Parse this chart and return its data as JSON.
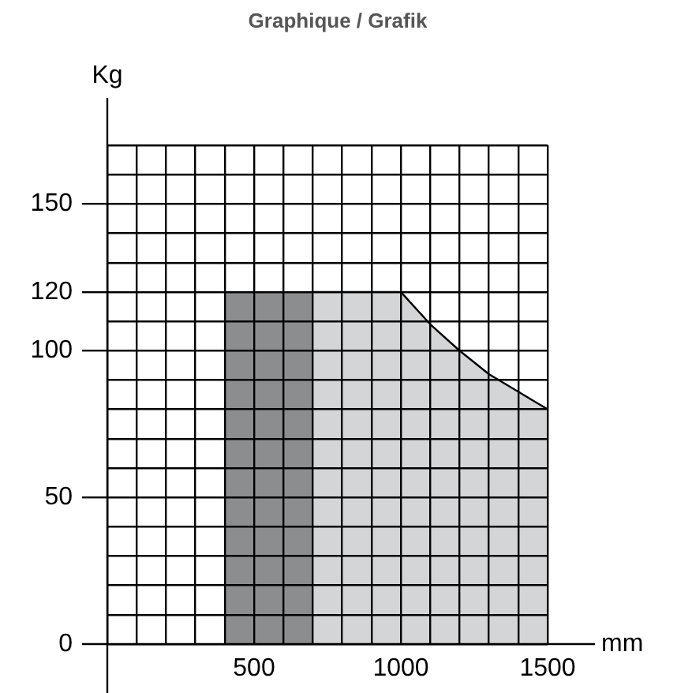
{
  "chart_data": {
    "type": "area",
    "title": "Graphique / Grafik",
    "xlabel": "mm",
    "ylabel": "Kg",
    "series": [
      {
        "color": "#8b8d8f",
        "x": [
          400,
          700
        ],
        "values": [
          120,
          120
        ]
      },
      {
        "color": "#d4d5d6",
        "x": [
          700,
          800,
          900,
          1000,
          1100,
          1200,
          1300,
          1400,
          1500
        ],
        "values": [
          120,
          120,
          120,
          120,
          109,
          100,
          92,
          86,
          80
        ]
      }
    ],
    "xlim": [
      0,
      1500
    ],
    "ylim": [
      0,
      170
    ],
    "xticks": [
      {
        "value": 0,
        "label": null
      },
      {
        "value": 100,
        "label": null
      },
      {
        "value": 200,
        "label": null
      },
      {
        "value": 300,
        "label": null
      },
      {
        "value": 400,
        "label": null
      },
      500,
      {
        "value": 600,
        "label": null
      },
      {
        "value": 700,
        "label": null
      },
      {
        "value": 800,
        "label": null
      },
      {
        "value": 900,
        "label": null
      },
      1000,
      {
        "value": 1100,
        "label": null
      },
      {
        "value": 1200,
        "label": null
      },
      {
        "value": 1300,
        "label": null
      },
      {
        "value": 1400,
        "label": null
      },
      1500
    ],
    "yticks": [
      0,
      {
        "value": 10,
        "label": null
      },
      {
        "value": 20,
        "label": null
      },
      {
        "value": 30,
        "label": null
      },
      {
        "value": 40,
        "label": null
      },
      50,
      {
        "value": 60,
        "label": null
      },
      {
        "value": 70,
        "label": null
      },
      {
        "value": 80,
        "label": null
      },
      {
        "value": 90,
        "label": null
      },
      100,
      {
        "value": 110,
        "label": null
      },
      120,
      {
        "value": 130,
        "label": null
      },
      {
        "value": 140,
        "label": null
      },
      150,
      {
        "value": 160,
        "label": null
      },
      {
        "value": 170,
        "label": null
      }
    ],
    "grid": true,
    "legend": false
  }
}
